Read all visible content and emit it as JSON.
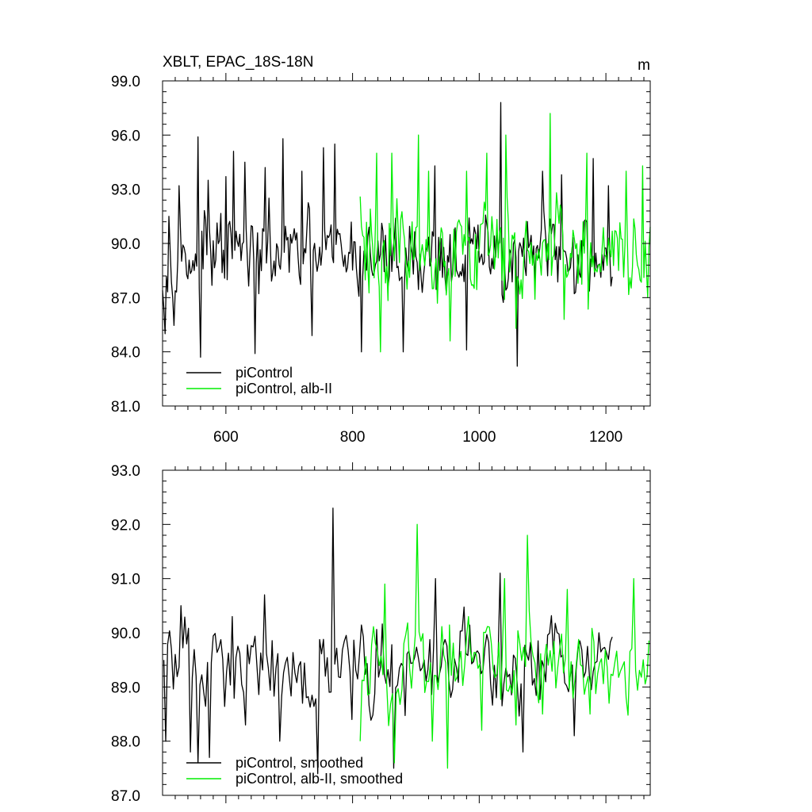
{
  "charts": [
    {
      "type": "line",
      "title": "XBLT, EPAC_18S-18N",
      "units": "m",
      "xlim": [
        500,
        1270
      ],
      "ylim": [
        81.0,
        99.0
      ],
      "x_ticks": [
        600,
        800,
        1000,
        1200
      ],
      "x_tick_labels": [
        "600",
        "800",
        "1000",
        "1200"
      ],
      "y_ticks": [
        81.0,
        84.0,
        87.0,
        90.0,
        93.0,
        96.0,
        99.0
      ],
      "y_tick_labels": [
        "81.0",
        "84.0",
        "87.0",
        "90.0",
        "93.0",
        "96.0",
        "99.0"
      ],
      "grid": false,
      "legend_position": "lower-left",
      "series": [
        {
          "name": "piControl",
          "color": "#000000",
          "x_start": 500,
          "x_end": 1210,
          "step": 2,
          "mean": 89.3,
          "amplitude": 1.6,
          "peaks": [
            [
              505,
              85.0
            ],
            [
              511,
              91.5
            ],
            [
              527,
              93.2
            ],
            [
              550,
              88.5
            ],
            [
              557,
              95.9
            ],
            [
              561,
              83.7
            ],
            [
              572,
              93.5
            ],
            [
              600,
              93.7
            ],
            [
              612,
              95.1
            ],
            [
              630,
              94.5
            ],
            [
              646,
              83.9
            ],
            [
              662,
              94.2
            ],
            [
              691,
              95.8
            ],
            [
              720,
              94.0
            ],
            [
              737,
              84.9
            ],
            [
              755,
              95.3
            ],
            [
              772,
              95.5
            ],
            [
              814,
              84.0
            ],
            [
              880,
              84.0
            ],
            [
              930,
              94.3
            ],
            [
              980,
              84.1
            ],
            [
              1034,
              97.8
            ],
            [
              1061,
              83.2
            ],
            [
              1100,
              94.0
            ],
            [
              1130,
              93.8
            ],
            [
              1180,
              94.7
            ],
            [
              1205,
              93.2
            ]
          ]
        },
        {
          "name": "piControl, alb-II",
          "color": "#00ee00",
          "x_start": 812,
          "x_end": 1270,
          "step": 2,
          "mean": 89.6,
          "amplitude": 2.0,
          "peaks": [
            [
              812,
              92.6
            ],
            [
              838,
              95.0
            ],
            [
              845,
              84.0
            ],
            [
              862,
              95.0
            ],
            [
              905,
              96.0
            ],
            [
              920,
              94.0
            ],
            [
              955,
              84.6
            ],
            [
              980,
              94.0
            ],
            [
              1012,
              95.0
            ],
            [
              1042,
              96.0
            ],
            [
              1058,
              85.3
            ],
            [
              1112,
              97.2
            ],
            [
              1135,
              85.8
            ],
            [
              1170,
              95.0
            ],
            [
              1232,
              94.0
            ],
            [
              1258,
              94.3
            ],
            [
              1267,
              87.0
            ]
          ]
        }
      ]
    },
    {
      "type": "line",
      "title": "",
      "units": "",
      "xlim": [
        500,
        1270
      ],
      "ylim": [
        87.0,
        93.0
      ],
      "x_ticks": [
        600,
        800,
        1000,
        1200
      ],
      "x_tick_labels": [],
      "y_ticks": [
        87.0,
        88.0,
        89.0,
        90.0,
        91.0,
        92.0,
        93.0
      ],
      "y_tick_labels": [
        "87.0",
        "88.0",
        "89.0",
        "90.0",
        "91.0",
        "92.0",
        "93.0"
      ],
      "grid": false,
      "legend_position": "lower-left",
      "series": [
        {
          "name": "piControl, smoothed",
          "color": "#000000",
          "x_start": 502,
          "x_end": 1210,
          "step": 3,
          "mean": 89.4,
          "amplitude": 0.55,
          "peaks": [
            [
              505,
              88.0
            ],
            [
              520,
              89.6
            ],
            [
              528,
              90.5
            ],
            [
              545,
              87.8
            ],
            [
              557,
              87.6
            ],
            [
              575,
              87.7
            ],
            [
              610,
              90.3
            ],
            [
              630,
              88.3
            ],
            [
              662,
              90.7
            ],
            [
              685,
              88.0
            ],
            [
              720,
              88.7
            ],
            [
              745,
              87.4
            ],
            [
              768,
              92.3
            ],
            [
              800,
              88.4
            ],
            [
              865,
              87.5
            ],
            [
              932,
              91.0
            ],
            [
              1032,
              91.1
            ],
            [
              1070,
              87.8
            ],
            [
              1150,
              88.1
            ],
            [
              1190,
              90.0
            ]
          ]
        },
        {
          "name": "piControl, alb-II, smoothed",
          "color": "#00ee00",
          "x_start": 812,
          "x_end": 1270,
          "step": 3,
          "mean": 89.5,
          "amplitude": 0.6,
          "peaks": [
            [
              812,
              88.0
            ],
            [
              850,
              90.9
            ],
            [
              865,
              87.6
            ],
            [
              902,
              92.0
            ],
            [
              925,
              88.0
            ],
            [
              950,
              87.5
            ],
            [
              1005,
              88.2
            ],
            [
              1040,
              91.0
            ],
            [
              1058,
              88.3
            ],
            [
              1075,
              91.8
            ],
            [
              1100,
              88.5
            ],
            [
              1140,
              90.8
            ],
            [
              1175,
              88.5
            ],
            [
              1205,
              88.7
            ],
            [
              1245,
              91.0
            ],
            [
              1265,
              89.2
            ]
          ]
        }
      ]
    }
  ]
}
